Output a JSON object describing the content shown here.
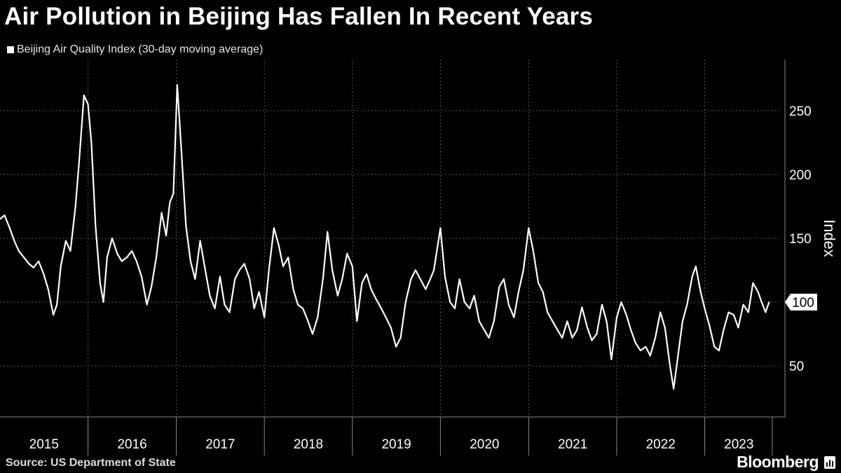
{
  "title": "Air Pollution in Beijing Has Fallen In Recent Years",
  "source": "Source: US Department of State",
  "brand": "Bloomberg",
  "colors": {
    "background": "#000000",
    "line": "#ffffff",
    "grid": "#5a5a5a",
    "text": "#ffffff"
  },
  "chart_data": {
    "type": "line",
    "title": "Air Pollution in Beijing Has Fallen In Recent Years",
    "ylabel": "Index",
    "xlabel": "",
    "ylim": [
      10,
      290
    ],
    "xlim": [
      "2015-01-01",
      "2023-11-15"
    ],
    "yticks": [
      50,
      100,
      150,
      200,
      250
    ],
    "xticks": [
      "2015",
      "2016",
      "2017",
      "2018",
      "2019",
      "2020",
      "2021",
      "2022",
      "2023"
    ],
    "grid": true,
    "legend_position": "top-left",
    "last_value_label": "100",
    "series": [
      {
        "name": "Beijing Air Quality Index (30-day moving average)",
        "color": "#ffffff",
        "points": [
          [
            "2015-01-01",
            165
          ],
          [
            "2015-01-20",
            168
          ],
          [
            "2015-02-10",
            158
          ],
          [
            "2015-03-01",
            148
          ],
          [
            "2015-03-20",
            140
          ],
          [
            "2015-04-10",
            135
          ],
          [
            "2015-05-01",
            130
          ],
          [
            "2015-05-20",
            127
          ],
          [
            "2015-06-10",
            132
          ],
          [
            "2015-07-01",
            122
          ],
          [
            "2015-07-20",
            110
          ],
          [
            "2015-08-10",
            90
          ],
          [
            "2015-08-25",
            98
          ],
          [
            "2015-09-10",
            128
          ],
          [
            "2015-10-01",
            148
          ],
          [
            "2015-10-20",
            140
          ],
          [
            "2015-11-10",
            175
          ],
          [
            "2015-11-25",
            210
          ],
          [
            "2015-12-15",
            262
          ],
          [
            "2016-01-01",
            255
          ],
          [
            "2016-01-15",
            225
          ],
          [
            "2016-02-01",
            160
          ],
          [
            "2016-02-20",
            115
          ],
          [
            "2016-03-05",
            100
          ],
          [
            "2016-03-20",
            135
          ],
          [
            "2016-04-10",
            150
          ],
          [
            "2016-05-01",
            138
          ],
          [
            "2016-05-20",
            132
          ],
          [
            "2016-06-10",
            135
          ],
          [
            "2016-07-01",
            140
          ],
          [
            "2016-07-20",
            132
          ],
          [
            "2016-08-10",
            120
          ],
          [
            "2016-09-01",
            98
          ],
          [
            "2016-09-20",
            112
          ],
          [
            "2016-10-10",
            135
          ],
          [
            "2016-11-01",
            170
          ],
          [
            "2016-11-20",
            152
          ],
          [
            "2016-12-05",
            178
          ],
          [
            "2016-12-20",
            185
          ],
          [
            "2017-01-05",
            270
          ],
          [
            "2017-01-20",
            225
          ],
          [
            "2017-02-10",
            160
          ],
          [
            "2017-03-01",
            132
          ],
          [
            "2017-03-20",
            118
          ],
          [
            "2017-04-10",
            148
          ],
          [
            "2017-05-01",
            125
          ],
          [
            "2017-05-20",
            105
          ],
          [
            "2017-06-10",
            95
          ],
          [
            "2017-07-01",
            120
          ],
          [
            "2017-07-20",
            98
          ],
          [
            "2017-08-10",
            92
          ],
          [
            "2017-09-01",
            118
          ],
          [
            "2017-09-20",
            125
          ],
          [
            "2017-10-10",
            130
          ],
          [
            "2017-11-01",
            118
          ],
          [
            "2017-11-20",
            95
          ],
          [
            "2017-12-10",
            108
          ],
          [
            "2018-01-01",
            88
          ],
          [
            "2018-01-20",
            125
          ],
          [
            "2018-02-10",
            158
          ],
          [
            "2018-03-01",
            145
          ],
          [
            "2018-03-20",
            128
          ],
          [
            "2018-04-10",
            135
          ],
          [
            "2018-05-01",
            110
          ],
          [
            "2018-05-20",
            98
          ],
          [
            "2018-06-10",
            95
          ],
          [
            "2018-07-01",
            85
          ],
          [
            "2018-07-20",
            75
          ],
          [
            "2018-08-10",
            88
          ],
          [
            "2018-09-01",
            118
          ],
          [
            "2018-09-20",
            155
          ],
          [
            "2018-10-10",
            125
          ],
          [
            "2018-11-01",
            105
          ],
          [
            "2018-11-20",
            118
          ],
          [
            "2018-12-10",
            138
          ],
          [
            "2019-01-01",
            128
          ],
          [
            "2019-01-20",
            85
          ],
          [
            "2019-02-10",
            115
          ],
          [
            "2019-03-01",
            122
          ],
          [
            "2019-03-20",
            110
          ],
          [
            "2019-04-10",
            102
          ],
          [
            "2019-05-01",
            95
          ],
          [
            "2019-05-20",
            88
          ],
          [
            "2019-06-10",
            80
          ],
          [
            "2019-07-01",
            65
          ],
          [
            "2019-07-20",
            72
          ],
          [
            "2019-08-10",
            100
          ],
          [
            "2019-09-01",
            118
          ],
          [
            "2019-09-20",
            125
          ],
          [
            "2019-10-10",
            118
          ],
          [
            "2019-11-01",
            110
          ],
          [
            "2019-11-20",
            118
          ],
          [
            "2019-12-05",
            125
          ],
          [
            "2020-01-01",
            158
          ],
          [
            "2020-01-20",
            120
          ],
          [
            "2020-02-10",
            100
          ],
          [
            "2020-03-01",
            95
          ],
          [
            "2020-03-20",
            118
          ],
          [
            "2020-04-10",
            100
          ],
          [
            "2020-05-01",
            95
          ],
          [
            "2020-05-20",
            105
          ],
          [
            "2020-06-10",
            85
          ],
          [
            "2020-07-01",
            78
          ],
          [
            "2020-07-20",
            72
          ],
          [
            "2020-08-10",
            85
          ],
          [
            "2020-09-01",
            112
          ],
          [
            "2020-09-20",
            118
          ],
          [
            "2020-10-10",
            98
          ],
          [
            "2020-11-01",
            88
          ],
          [
            "2020-11-20",
            108
          ],
          [
            "2020-12-10",
            125
          ],
          [
            "2021-01-01",
            158
          ],
          [
            "2021-01-20",
            140
          ],
          [
            "2021-02-10",
            115
          ],
          [
            "2021-03-01",
            108
          ],
          [
            "2021-03-20",
            92
          ],
          [
            "2021-04-10",
            85
          ],
          [
            "2021-05-01",
            78
          ],
          [
            "2021-05-20",
            72
          ],
          [
            "2021-06-10",
            85
          ],
          [
            "2021-07-01",
            72
          ],
          [
            "2021-07-20",
            78
          ],
          [
            "2021-08-10",
            96
          ],
          [
            "2021-09-01",
            80
          ],
          [
            "2021-09-20",
            70
          ],
          [
            "2021-10-10",
            75
          ],
          [
            "2021-11-01",
            98
          ],
          [
            "2021-11-20",
            85
          ],
          [
            "2021-12-10",
            55
          ],
          [
            "2022-01-01",
            88
          ],
          [
            "2022-01-20",
            100
          ],
          [
            "2022-02-10",
            90
          ],
          [
            "2022-03-01",
            78
          ],
          [
            "2022-03-20",
            68
          ],
          [
            "2022-04-10",
            62
          ],
          [
            "2022-05-01",
            65
          ],
          [
            "2022-05-20",
            58
          ],
          [
            "2022-06-10",
            72
          ],
          [
            "2022-07-01",
            92
          ],
          [
            "2022-07-20",
            80
          ],
          [
            "2022-08-10",
            50
          ],
          [
            "2022-08-25",
            32
          ],
          [
            "2022-09-10",
            55
          ],
          [
            "2022-10-01",
            85
          ],
          [
            "2022-10-20",
            98
          ],
          [
            "2022-11-10",
            120
          ],
          [
            "2022-11-25",
            128
          ],
          [
            "2022-12-15",
            108
          ],
          [
            "2023-01-05",
            92
          ],
          [
            "2023-01-20",
            82
          ],
          [
            "2023-02-10",
            65
          ],
          [
            "2023-03-01",
            62
          ],
          [
            "2023-03-20",
            78
          ],
          [
            "2023-04-10",
            92
          ],
          [
            "2023-05-01",
            90
          ],
          [
            "2023-05-20",
            80
          ],
          [
            "2023-06-10",
            98
          ],
          [
            "2023-07-01",
            92
          ],
          [
            "2023-07-20",
            115
          ],
          [
            "2023-08-10",
            108
          ],
          [
            "2023-08-25",
            100
          ],
          [
            "2023-09-10",
            92
          ],
          [
            "2023-09-25",
            100
          ]
        ]
      }
    ]
  }
}
